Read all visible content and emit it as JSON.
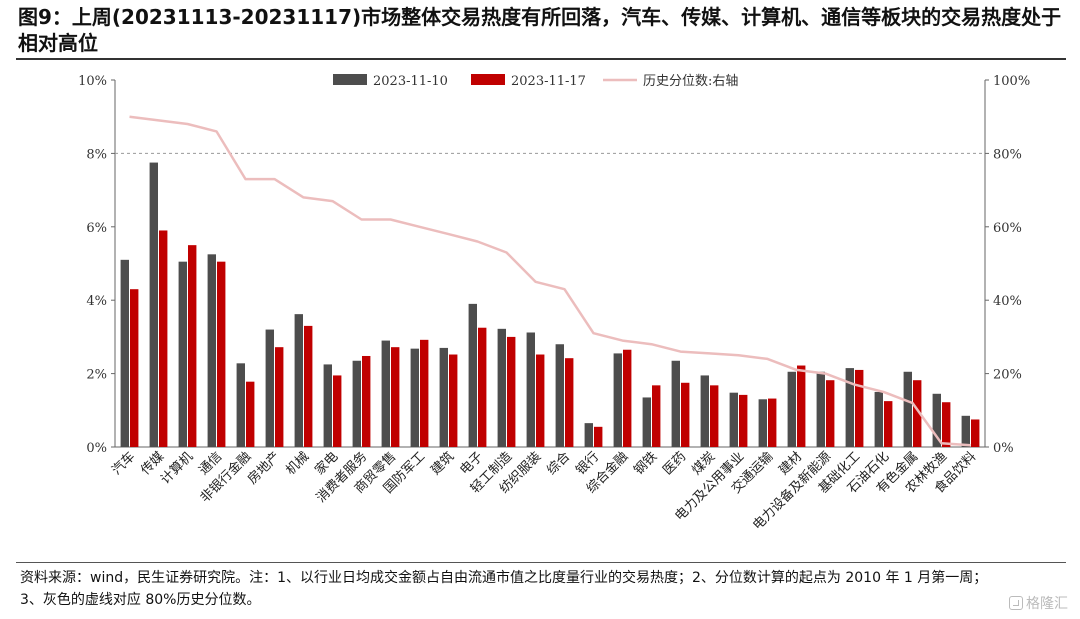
{
  "page": {
    "title": "图9：上周(20231113-20231117)市场整体交易热度有所回落，汽车、传媒、计算机、通信等板块的交易热度处于相对高位",
    "footer_line1": "资料来源：wind，民生证券研究院。注：1、以行业日均成交金额占自由流通市值之比度量行业的交易热度；2、分位数计算的起点为 2010 年 1 月第一周；",
    "footer_line2": "3、灰色的虚线对应 80%历史分位数。",
    "watermark": "格隆汇"
  },
  "colors": {
    "series1": "#4d4d4d",
    "series2": "#c00000",
    "series3": "#ecbdbd",
    "refline": "#999999",
    "axis": "#666666"
  },
  "chart_data": {
    "type": "bar",
    "categories": [
      "汽车",
      "传媒",
      "计算机",
      "通信",
      "非银行金融",
      "房地产",
      "机械",
      "家电",
      "消费者服务",
      "商贸零售",
      "国防军工",
      "建筑",
      "电子",
      "轻工制造",
      "纺织服装",
      "综合",
      "银行",
      "综合金融",
      "钢铁",
      "医药",
      "煤炭",
      "电力及公用事业",
      "交通运输",
      "建材",
      "电力设备及新能源",
      "基础化工",
      "石油石化",
      "有色金属",
      "农林牧渔",
      "食品饮料"
    ],
    "series": [
      {
        "name": "2023-11-10",
        "type": "bar",
        "axis": "left",
        "values": [
          5.1,
          7.75,
          5.05,
          5.25,
          2.28,
          3.2,
          3.62,
          2.25,
          2.35,
          2.9,
          2.68,
          2.7,
          3.9,
          3.22,
          3.12,
          2.8,
          0.65,
          2.55,
          1.35,
          2.35,
          1.95,
          1.48,
          1.3,
          2.05,
          2.05,
          2.15,
          1.5,
          2.05,
          1.45,
          0.85
        ]
      },
      {
        "name": "2023-11-17",
        "type": "bar",
        "axis": "left",
        "values": [
          4.3,
          5.9,
          5.5,
          5.05,
          1.78,
          2.72,
          3.3,
          1.95,
          2.48,
          2.72,
          2.92,
          2.52,
          3.25,
          3.0,
          2.52,
          2.42,
          0.55,
          2.65,
          1.68,
          1.75,
          1.68,
          1.42,
          1.32,
          2.22,
          1.82,
          2.1,
          1.25,
          1.82,
          1.22,
          0.75
        ]
      },
      {
        "name": "历史分位数:右轴",
        "type": "line",
        "axis": "right",
        "values": [
          90,
          89,
          88,
          86,
          73,
          73,
          68,
          67,
          62,
          62,
          60,
          58,
          56,
          53,
          45,
          43,
          31,
          29,
          28,
          26,
          25.5,
          25,
          24,
          21,
          20,
          17,
          15,
          12,
          1,
          0.5
        ]
      }
    ],
    "ylim_left": [
      0,
      10
    ],
    "yticks_left": [
      "0%",
      "2%",
      "4%",
      "6%",
      "8%",
      "10%"
    ],
    "ylim_right": [
      0,
      100
    ],
    "yticks_right": [
      "0%",
      "20%",
      "40%",
      "60%",
      "80%",
      "100%"
    ],
    "reference_line": {
      "axis": "left",
      "value": 8,
      "style": "dashed"
    },
    "legend_position": "top-center",
    "grid": false
  }
}
